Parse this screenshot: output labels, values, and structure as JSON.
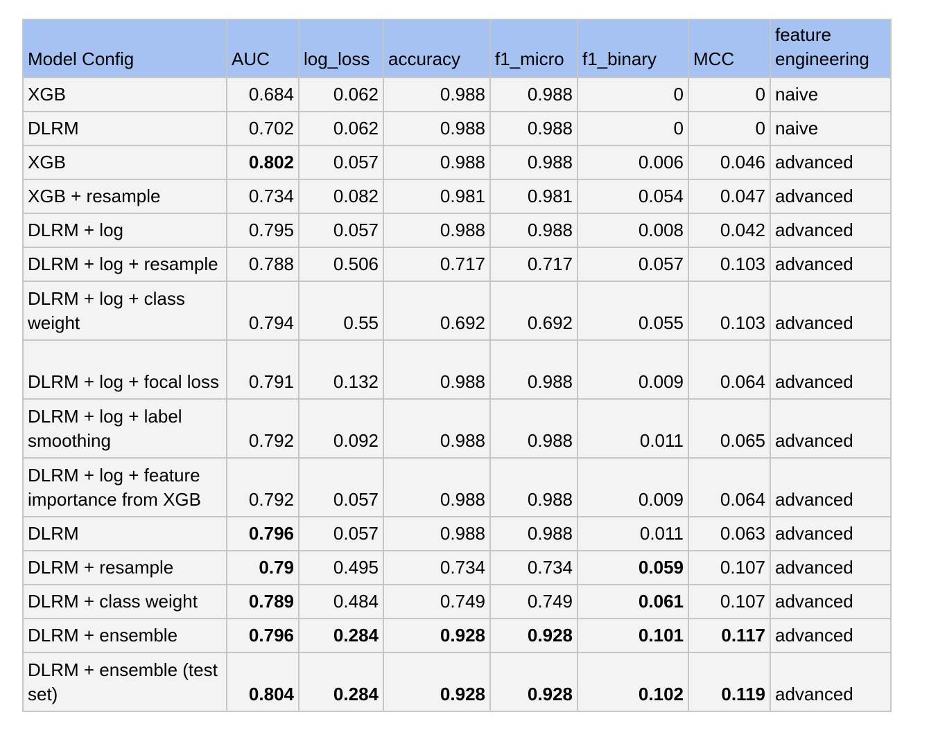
{
  "chart_data": {
    "type": "table",
    "columns": [
      "Model Config",
      "AUC",
      "log_loss",
      "accuracy",
      "f1_micro",
      "f1_binary",
      "MCC",
      "feature engineering"
    ],
    "rows": [
      {
        "cells": [
          "XGB",
          "0.684",
          "0.062",
          "0.988",
          "0.988",
          "0",
          "0",
          "naive"
        ],
        "bold": [
          false,
          false,
          false,
          false,
          false,
          false,
          false,
          false
        ]
      },
      {
        "cells": [
          "DLRM",
          "0.702",
          "0.062",
          "0.988",
          "0.988",
          "0",
          "0",
          "naive"
        ],
        "bold": [
          false,
          false,
          false,
          false,
          false,
          false,
          false,
          false
        ]
      },
      {
        "cells": [
          "XGB",
          "0.802",
          "0.057",
          "0.988",
          "0.988",
          "0.006",
          "0.046",
          "advanced"
        ],
        "bold": [
          false,
          true,
          false,
          false,
          false,
          false,
          false,
          false
        ]
      },
      {
        "cells": [
          "XGB + resample",
          "0.734",
          "0.082",
          "0.981",
          "0.981",
          "0.054",
          "0.047",
          "advanced"
        ],
        "bold": [
          false,
          false,
          false,
          false,
          false,
          false,
          false,
          false
        ]
      },
      {
        "cells": [
          "DLRM + log",
          "0.795",
          "0.057",
          "0.988",
          "0.988",
          "0.008",
          "0.042",
          "advanced"
        ],
        "bold": [
          false,
          false,
          false,
          false,
          false,
          false,
          false,
          false
        ]
      },
      {
        "cells": [
          "DLRM + log + resample",
          "0.788",
          "0.506",
          "0.717",
          "0.717",
          "0.057",
          "0.103",
          "advanced"
        ],
        "bold": [
          false,
          false,
          false,
          false,
          false,
          false,
          false,
          false
        ]
      },
      {
        "cells": [
          "DLRM + log + class weight",
          "0.794",
          "0.55",
          "0.692",
          "0.692",
          "0.055",
          "0.103",
          "advanced"
        ],
        "bold": [
          false,
          false,
          false,
          false,
          false,
          false,
          false,
          false
        ]
      },
      {
        "cells": [
          "DLRM + log + focal loss",
          "0.791",
          "0.132",
          "0.988",
          "0.988",
          "0.009",
          "0.064",
          "advanced"
        ],
        "bold": [
          false,
          false,
          false,
          false,
          false,
          false,
          false,
          false
        ]
      },
      {
        "cells": [
          "DLRM + log + label smoothing",
          "0.792",
          "0.092",
          "0.988",
          "0.988",
          "0.011",
          "0.065",
          "advanced"
        ],
        "bold": [
          false,
          false,
          false,
          false,
          false,
          false,
          false,
          false
        ]
      },
      {
        "cells": [
          "DLRM + log + feature importance from XGB",
          "0.792",
          "0.057",
          "0.988",
          "0.988",
          "0.009",
          "0.064",
          "advanced"
        ],
        "bold": [
          false,
          false,
          false,
          false,
          false,
          false,
          false,
          false
        ]
      },
      {
        "cells": [
          "DLRM",
          "0.796",
          "0.057",
          "0.988",
          "0.988",
          "0.011",
          "0.063",
          "advanced"
        ],
        "bold": [
          false,
          true,
          false,
          false,
          false,
          false,
          false,
          false
        ]
      },
      {
        "cells": [
          "DLRM + resample",
          "0.79",
          "0.495",
          "0.734",
          "0.734",
          "0.059",
          "0.107",
          "advanced"
        ],
        "bold": [
          false,
          true,
          false,
          false,
          false,
          true,
          false,
          false
        ]
      },
      {
        "cells": [
          "DLRM + class weight",
          "0.789",
          "0.484",
          "0.749",
          "0.749",
          "0.061",
          "0.107",
          "advanced"
        ],
        "bold": [
          false,
          true,
          false,
          false,
          false,
          true,
          false,
          false
        ]
      },
      {
        "cells": [
          "DLRM + ensemble",
          "0.796",
          "0.284",
          "0.928",
          "0.928",
          "0.101",
          "0.117",
          "advanced"
        ],
        "bold": [
          false,
          true,
          true,
          true,
          true,
          true,
          true,
          false
        ]
      },
      {
        "cells": [
          "DLRM + ensemble (test set)",
          "0.804",
          "0.284",
          "0.928",
          "0.928",
          "0.102",
          "0.119",
          "advanced"
        ],
        "bold": [
          false,
          true,
          true,
          true,
          true,
          true,
          true,
          false
        ]
      }
    ]
  }
}
